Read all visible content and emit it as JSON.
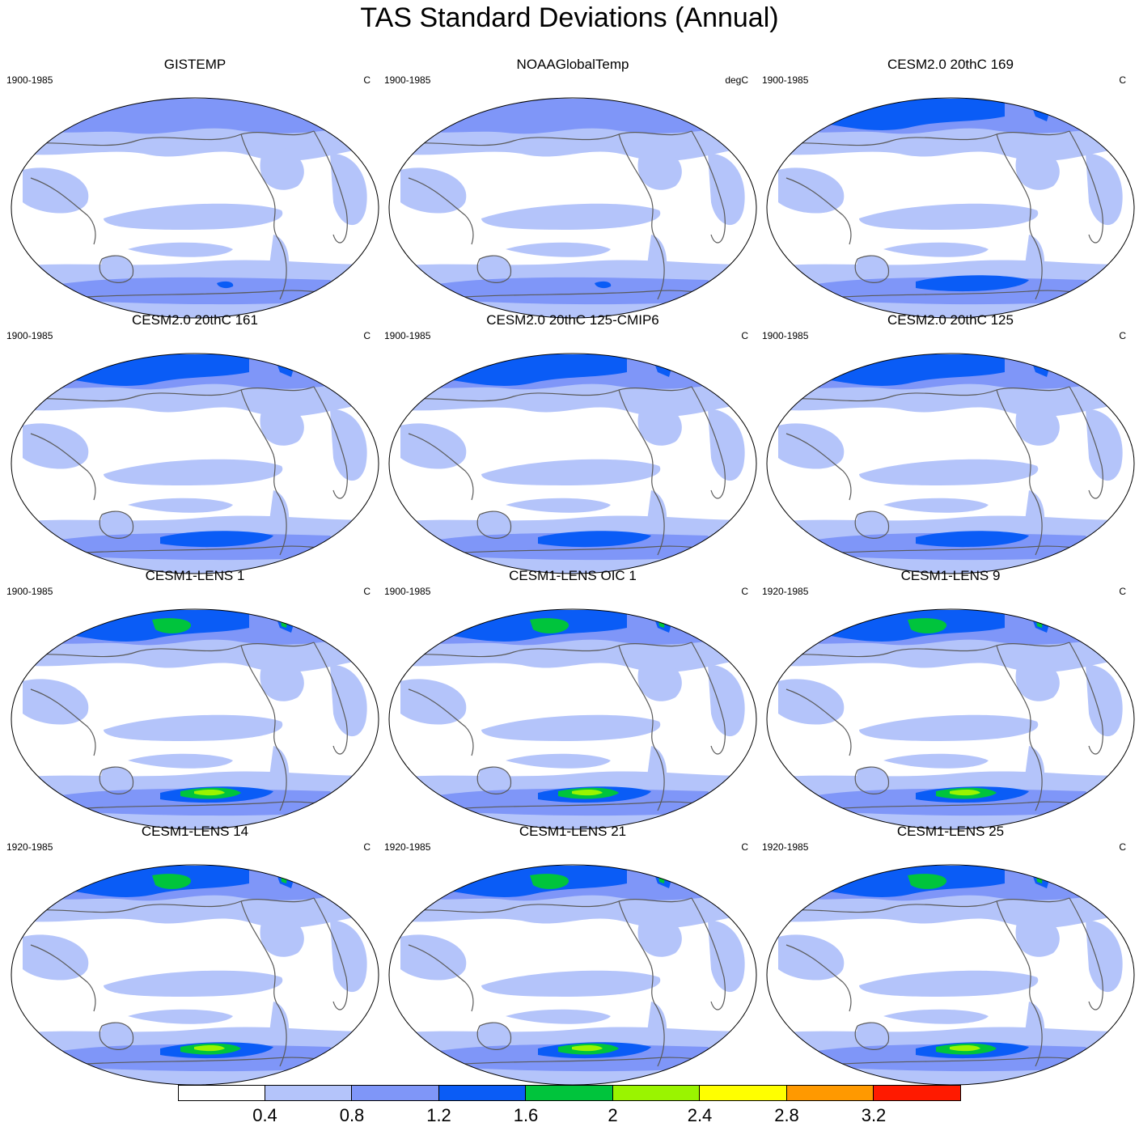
{
  "title": "TAS Standard Deviations (Annual)",
  "panels": [
    {
      "name": "GISTEMP",
      "period": "1900-1985",
      "units": "C",
      "intensity": 0
    },
    {
      "name": "NOAAGlobalTemp",
      "period": "1900-1985",
      "units": "degC",
      "intensity": 0
    },
    {
      "name": "CESM2.0 20thC 169",
      "period": "1900-1985",
      "units": "C",
      "intensity": 1
    },
    {
      "name": "CESM2.0 20thC 161",
      "period": "1900-1985",
      "units": "C",
      "intensity": 1
    },
    {
      "name": "CESM2.0 20thC 125-CMIP6",
      "period": "1900-1985",
      "units": "C",
      "intensity": 1
    },
    {
      "name": "CESM2.0 20thC 125",
      "period": "1900-1985",
      "units": "C",
      "intensity": 1
    },
    {
      "name": "CESM1-LENS 1",
      "period": "1900-1985",
      "units": "C",
      "intensity": 2
    },
    {
      "name": "CESM1-LENS OIC 1",
      "period": "1900-1985",
      "units": "C",
      "intensity": 2
    },
    {
      "name": "CESM1-LENS 9",
      "period": "1920-1985",
      "units": "C",
      "intensity": 2
    },
    {
      "name": "CESM1-LENS 14",
      "period": "1920-1985",
      "units": "C",
      "intensity": 2
    },
    {
      "name": "CESM1-LENS 21",
      "period": "1920-1985",
      "units": "C",
      "intensity": 2
    },
    {
      "name": "CESM1-LENS 25",
      "period": "1920-1985",
      "units": "C",
      "intensity": 2
    }
  ],
  "colorbar": {
    "colors": [
      "#ffffff",
      "#b4c4fa",
      "#7f96f8",
      "#0a5cf6",
      "#00c43c",
      "#9af400",
      "#ffff00",
      "#ff9900",
      "#ff1a00"
    ],
    "labels": [
      "0.4",
      "0.8",
      "1.2",
      "1.6",
      "2",
      "2.4",
      "2.8",
      "3.2"
    ]
  }
}
